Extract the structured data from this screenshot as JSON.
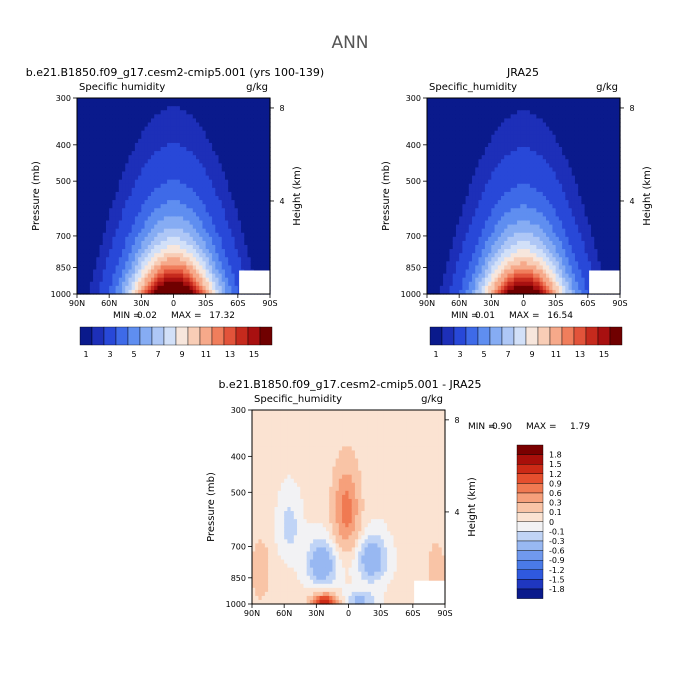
{
  "page": {
    "suptitle": "ANN"
  },
  "chart_data": [
    {
      "type": "heatmap",
      "title": "b.e21.B1850.f09_g17.cesm2-cmip5.001 (yrs 100-139)",
      "left_label": "Specific humidity",
      "right_label": "g/kg",
      "xlabel": "",
      "ylabel": "Pressure (mb)",
      "ylabel_right": "Height (km)",
      "x_ticks": [
        "90N",
        "60N",
        "30N",
        "0",
        "30S",
        "60S",
        "90S"
      ],
      "y_ticks": [
        "300",
        "400",
        "500",
        "700",
        "850",
        "1000"
      ],
      "y_right_ticks": [
        "8",
        "4"
      ],
      "min_label": "MIN =",
      "min": "0.02",
      "max_label": "MAX =",
      "max": "17.32",
      "peak": 17.32,
      "colorbar_labels": [
        "1",
        "3",
        "5",
        "7",
        "9",
        "11",
        "13",
        "15"
      ]
    },
    {
      "type": "heatmap",
      "title": "JRA25",
      "left_label": "Specific_humidity",
      "right_label": "g/kg",
      "xlabel": "",
      "ylabel": "Pressure (mb)",
      "ylabel_right": "Height (km)",
      "x_ticks": [
        "90N",
        "60N",
        "30N",
        "0",
        "30S",
        "60S",
        "90S"
      ],
      "y_ticks": [
        "300",
        "400",
        "500",
        "700",
        "850",
        "1000"
      ],
      "y_right_ticks": [
        "8",
        "4"
      ],
      "min_label": "MIN =",
      "min": "0.01",
      "max_label": "MAX =",
      "max": "16.54",
      "peak": 16.54,
      "colorbar_labels": [
        "1",
        "3",
        "5",
        "7",
        "9",
        "11",
        "13",
        "15"
      ]
    },
    {
      "type": "heatmap",
      "title": "b.e21.B1850.f09_g17.cesm2-cmip5.001 - JRA25",
      "left_label": "Specific_humidity",
      "right_label": "g/kg",
      "xlabel": "",
      "ylabel": "Pressure (mb)",
      "ylabel_right": "Height (km)",
      "x_ticks": [
        "90N",
        "60N",
        "30N",
        "0",
        "30S",
        "60S",
        "90S"
      ],
      "y_ticks": [
        "300",
        "400",
        "500",
        "700",
        "850",
        "1000"
      ],
      "y_right_ticks": [
        "8",
        "4"
      ],
      "min_label": "MIN =",
      "min": "-0.90",
      "max_label": "MAX =",
      "max": "1.79",
      "colorbar_labels": [
        "1.8",
        "1.5",
        "1.2",
        "0.9",
        "0.6",
        "0.3",
        "0.1",
        "0",
        "-0.1",
        "-0.3",
        "-0.6",
        "-0.9",
        "-1.2",
        "-1.5",
        "-1.8"
      ]
    }
  ],
  "colors": {
    "seq": [
      "#0a1a8c",
      "#1d2fb8",
      "#2848d8",
      "#3e6ae8",
      "#5f8ef0",
      "#86acf3",
      "#aec7f6",
      "#d2e0f8",
      "#f7e6dc",
      "#f8cdb6",
      "#f6a98a",
      "#f07e5c",
      "#e2533a",
      "#c62a1d",
      "#a81010",
      "#700000"
    ],
    "div": [
      "#0a1a8c",
      "#1f37c0",
      "#2f59de",
      "#4a7ae8",
      "#7099ee",
      "#98b8f2",
      "#c0d4f6",
      "#f2f2f4",
      "#fbe3d2",
      "#f9c4a6",
      "#f6a07b",
      "#f07a52",
      "#e54f2e",
      "#cc2a16",
      "#a80f0a",
      "#7a0000"
    ],
    "axis": "#000000",
    "suptitle": "#555555"
  }
}
